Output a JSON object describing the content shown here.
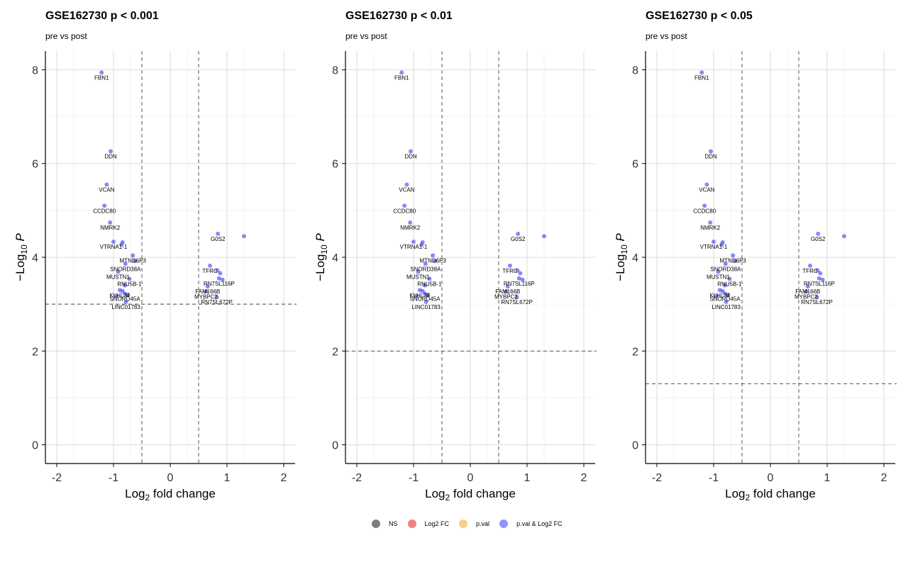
{
  "colors": {
    "NS": "#000000",
    "Log2 FC": "#e41a1c",
    "p.val": "#f5a623",
    "p.val & Log2 FC": "#3b3bf5"
  },
  "legend": [
    {
      "label": "NS",
      "color": "#000000",
      "opacity": 0.5
    },
    {
      "label": "Log2 FC",
      "color": "#e41a1c",
      "opacity": 0.55
    },
    {
      "label": "p.val",
      "color": "#f5a623",
      "opacity": 0.55
    },
    {
      "label": "p.val & Log2 FC",
      "color": "#3b3bf5",
      "opacity": 0.55
    }
  ],
  "chart_data": [
    {
      "type": "scatter",
      "title": "GSE162730 p < 0.001",
      "subtitle": "pre vs post",
      "xlabel": "Log2 fold change",
      "ylabel": "-Log10 P",
      "xlim": [
        -2.2,
        2.2
      ],
      "ylim": [
        -0.4,
        8.4
      ],
      "xticks": [
        -2,
        -1,
        0,
        1,
        2
      ],
      "xtick_labels": [
        "-2",
        "-1",
        "0",
        "1",
        "2"
      ],
      "yticks": [
        0,
        2,
        4,
        6,
        8
      ],
      "ytick_labels": [
        "0",
        "2",
        "4",
        "6",
        "8"
      ],
      "fc_cutoff": 0.5,
      "p_cutoff_line": 3.0,
      "grid": true,
      "legend_position": "bottom"
    },
    {
      "type": "scatter",
      "title": "GSE162730 p < 0.01",
      "subtitle": "pre vs post",
      "xlabel": "Log2 fold change",
      "ylabel": "-Log10 P",
      "xlim": [
        -2.2,
        2.2
      ],
      "ylim": [
        -0.4,
        8.4
      ],
      "xticks": [
        -2,
        -1,
        0,
        1,
        2
      ],
      "xtick_labels": [
        "-2",
        "-1",
        "0",
        "1",
        "2"
      ],
      "yticks": [
        0,
        2,
        4,
        6,
        8
      ],
      "ytick_labels": [
        "0",
        "2",
        "4",
        "6",
        "8"
      ],
      "fc_cutoff": 0.5,
      "p_cutoff_line": 2.0,
      "grid": true,
      "legend_position": "bottom"
    },
    {
      "type": "scatter",
      "title": "GSE162730 p < 0.05",
      "subtitle": "pre vs post",
      "xlabel": "Log2 fold change",
      "ylabel": "-Log10 P",
      "xlim": [
        -2.2,
        2.2
      ],
      "ylim": [
        -0.4,
        8.4
      ],
      "xticks": [
        -2,
        -1,
        0,
        1,
        2
      ],
      "xtick_labels": [
        "-2",
        "-1",
        "0",
        "1",
        "2"
      ],
      "yticks": [
        0,
        2,
        4,
        6,
        8
      ],
      "ytick_labels": [
        "0",
        "2",
        "4",
        "6",
        "8"
      ],
      "fc_cutoff": 0.5,
      "p_cutoff_line": 1.3,
      "grid": true,
      "legend_position": "bottom"
    }
  ],
  "points": [
    {
      "gene": "FBN1",
      "x": -1.21,
      "y": 7.94,
      "group": "p.val & Log2 FC"
    },
    {
      "gene": "DDN",
      "x": -1.05,
      "y": 6.26,
      "group": "p.val & Log2 FC"
    },
    {
      "gene": "VCAN",
      "x": -1.12,
      "y": 5.55,
      "group": "p.val & Log2 FC"
    },
    {
      "gene": "CCDC80",
      "x": -1.16,
      "y": 5.1,
      "group": "p.val & Log2 FC"
    },
    {
      "gene": "NMRK2",
      "x": -1.06,
      "y": 4.74,
      "group": "p.val & Log2 FC"
    },
    {
      "gene": "VTRNA1-1",
      "x": -1.0,
      "y": 4.33,
      "group": "p.val & Log2 FC"
    },
    {
      "gene": "",
      "x": -0.84,
      "y": 4.32,
      "group": "p.val & Log2 FC"
    },
    {
      "gene": "",
      "x": -0.86,
      "y": 4.27,
      "group": "p.val & Log2 FC"
    },
    {
      "gene": "MTND6P3",
      "x": -0.66,
      "y": 4.04,
      "group": "p.val & Log2 FC"
    },
    {
      "gene": "",
      "x": -0.62,
      "y": 3.92,
      "group": "p.val & Log2 FC"
    },
    {
      "gene": "SNORD38A",
      "x": -0.79,
      "y": 3.86,
      "group": "p.val & Log2 FC"
    },
    {
      "gene": "MUSTN1",
      "x": -0.92,
      "y": 3.69,
      "group": "p.val & Log2 FC"
    },
    {
      "gene": "RNU5B-1",
      "x": -0.72,
      "y": 3.54,
      "group": "p.val & Log2 FC"
    },
    {
      "gene": "",
      "x": -0.8,
      "y": 3.4,
      "group": "p.val & Log2 FC"
    },
    {
      "gene": "KLHL34",
      "x": -0.89,
      "y": 3.3,
      "group": "p.val & Log2 FC"
    },
    {
      "gene": "",
      "x": -0.84,
      "y": 3.28,
      "group": "p.val & Log2 FC"
    },
    {
      "gene": "SNORD45A",
      "x": -0.8,
      "y": 3.22,
      "group": "p.val & Log2 FC"
    },
    {
      "gene": "",
      "x": -0.95,
      "y": 3.18,
      "group": "p.val & Log2 FC"
    },
    {
      "gene": "",
      "x": -0.75,
      "y": 3.2,
      "group": "p.val & Log2 FC"
    },
    {
      "gene": "LINC01783",
      "x": -0.78,
      "y": 3.05,
      "group": "p.val & Log2 FC"
    },
    {
      "gene": "G0S2",
      "x": 0.84,
      "y": 4.5,
      "group": "p.val & Log2 FC"
    },
    {
      "gene": "",
      "x": 1.3,
      "y": 4.45,
      "group": "p.val & Log2 FC"
    },
    {
      "gene": "TFRC",
      "x": 0.7,
      "y": 3.82,
      "group": "p.val & Log2 FC"
    },
    {
      "gene": "",
      "x": 0.83,
      "y": 3.72,
      "group": "p.val & Log2 FC"
    },
    {
      "gene": "",
      "x": 0.88,
      "y": 3.66,
      "group": "p.val & Log2 FC"
    },
    {
      "gene": "RN7SL116P",
      "x": 0.86,
      "y": 3.55,
      "group": "p.val & Log2 FC"
    },
    {
      "gene": "",
      "x": 0.92,
      "y": 3.52,
      "group": "p.val & Log2 FC"
    },
    {
      "gene": "FAM166B",
      "x": 0.66,
      "y": 3.38,
      "group": "p.val & Log2 FC"
    },
    {
      "gene": "MYBPC2",
      "x": 0.63,
      "y": 3.27,
      "group": "p.val & Log2 FC"
    },
    {
      "gene": "RN7SL672P",
      "x": 0.82,
      "y": 3.15,
      "group": "p.val & Log2 FC"
    }
  ]
}
